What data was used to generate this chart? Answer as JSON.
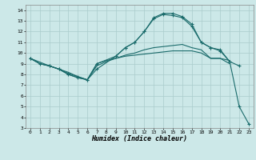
{
  "xlabel": "Humidex (Indice chaleur)",
  "bg_color": "#cce8e8",
  "grid_color": "#aacccc",
  "line_color": "#1a6b6b",
  "xlim": [
    -0.5,
    23.5
  ],
  "ylim": [
    3,
    14.5
  ],
  "xticks": [
    0,
    1,
    2,
    3,
    4,
    5,
    6,
    7,
    8,
    9,
    10,
    11,
    12,
    13,
    14,
    15,
    16,
    17,
    18,
    19,
    20,
    21,
    22,
    23
  ],
  "yticks": [
    3,
    4,
    5,
    6,
    7,
    8,
    9,
    10,
    11,
    12,
    13,
    14
  ],
  "s1x": [
    0,
    1,
    2,
    3,
    4,
    5,
    6,
    7,
    8,
    9,
    10,
    11,
    12,
    13,
    14,
    15,
    16,
    17,
    18,
    19,
    20,
    21
  ],
  "s1y": [
    9.5,
    9.0,
    8.8,
    8.5,
    8.2,
    7.8,
    7.5,
    9.0,
    9.3,
    9.5,
    9.7,
    9.8,
    9.9,
    10.0,
    10.1,
    10.2,
    10.2,
    10.2,
    10.0,
    9.5,
    9.5,
    9.3
  ],
  "s2x": [
    0,
    1,
    2,
    3,
    4,
    5,
    6,
    7,
    8,
    9,
    10,
    11,
    12,
    13,
    14,
    15,
    16,
    17,
    18,
    19,
    20,
    21
  ],
  "s2y": [
    9.5,
    9.0,
    8.8,
    8.5,
    8.0,
    7.7,
    7.5,
    8.8,
    9.2,
    9.5,
    9.8,
    10.0,
    10.3,
    10.5,
    10.6,
    10.7,
    10.8,
    10.5,
    10.3,
    9.5,
    9.5,
    9.0
  ],
  "s3x": [
    0,
    1,
    2,
    3,
    4,
    5,
    6,
    7,
    9,
    10,
    11,
    12,
    13,
    14,
    15,
    16,
    17,
    18,
    19,
    20,
    21,
    22
  ],
  "s3y": [
    9.5,
    9.0,
    8.8,
    8.5,
    8.1,
    7.8,
    7.5,
    9.0,
    9.7,
    10.5,
    11.0,
    12.0,
    13.3,
    13.7,
    13.7,
    13.4,
    12.7,
    11.0,
    10.5,
    10.3,
    9.2,
    8.8
  ],
  "s4x": [
    0,
    2,
    3,
    4,
    5,
    6,
    7,
    9,
    10,
    11,
    12,
    13,
    14,
    15,
    16,
    17,
    18,
    19,
    20,
    21,
    22,
    23
  ],
  "s4y": [
    9.5,
    8.8,
    8.5,
    8.0,
    7.7,
    7.5,
    8.5,
    9.7,
    10.5,
    11.0,
    12.0,
    13.2,
    13.6,
    13.5,
    13.3,
    12.5,
    11.0,
    10.5,
    10.2,
    9.2,
    5.0,
    3.4
  ]
}
